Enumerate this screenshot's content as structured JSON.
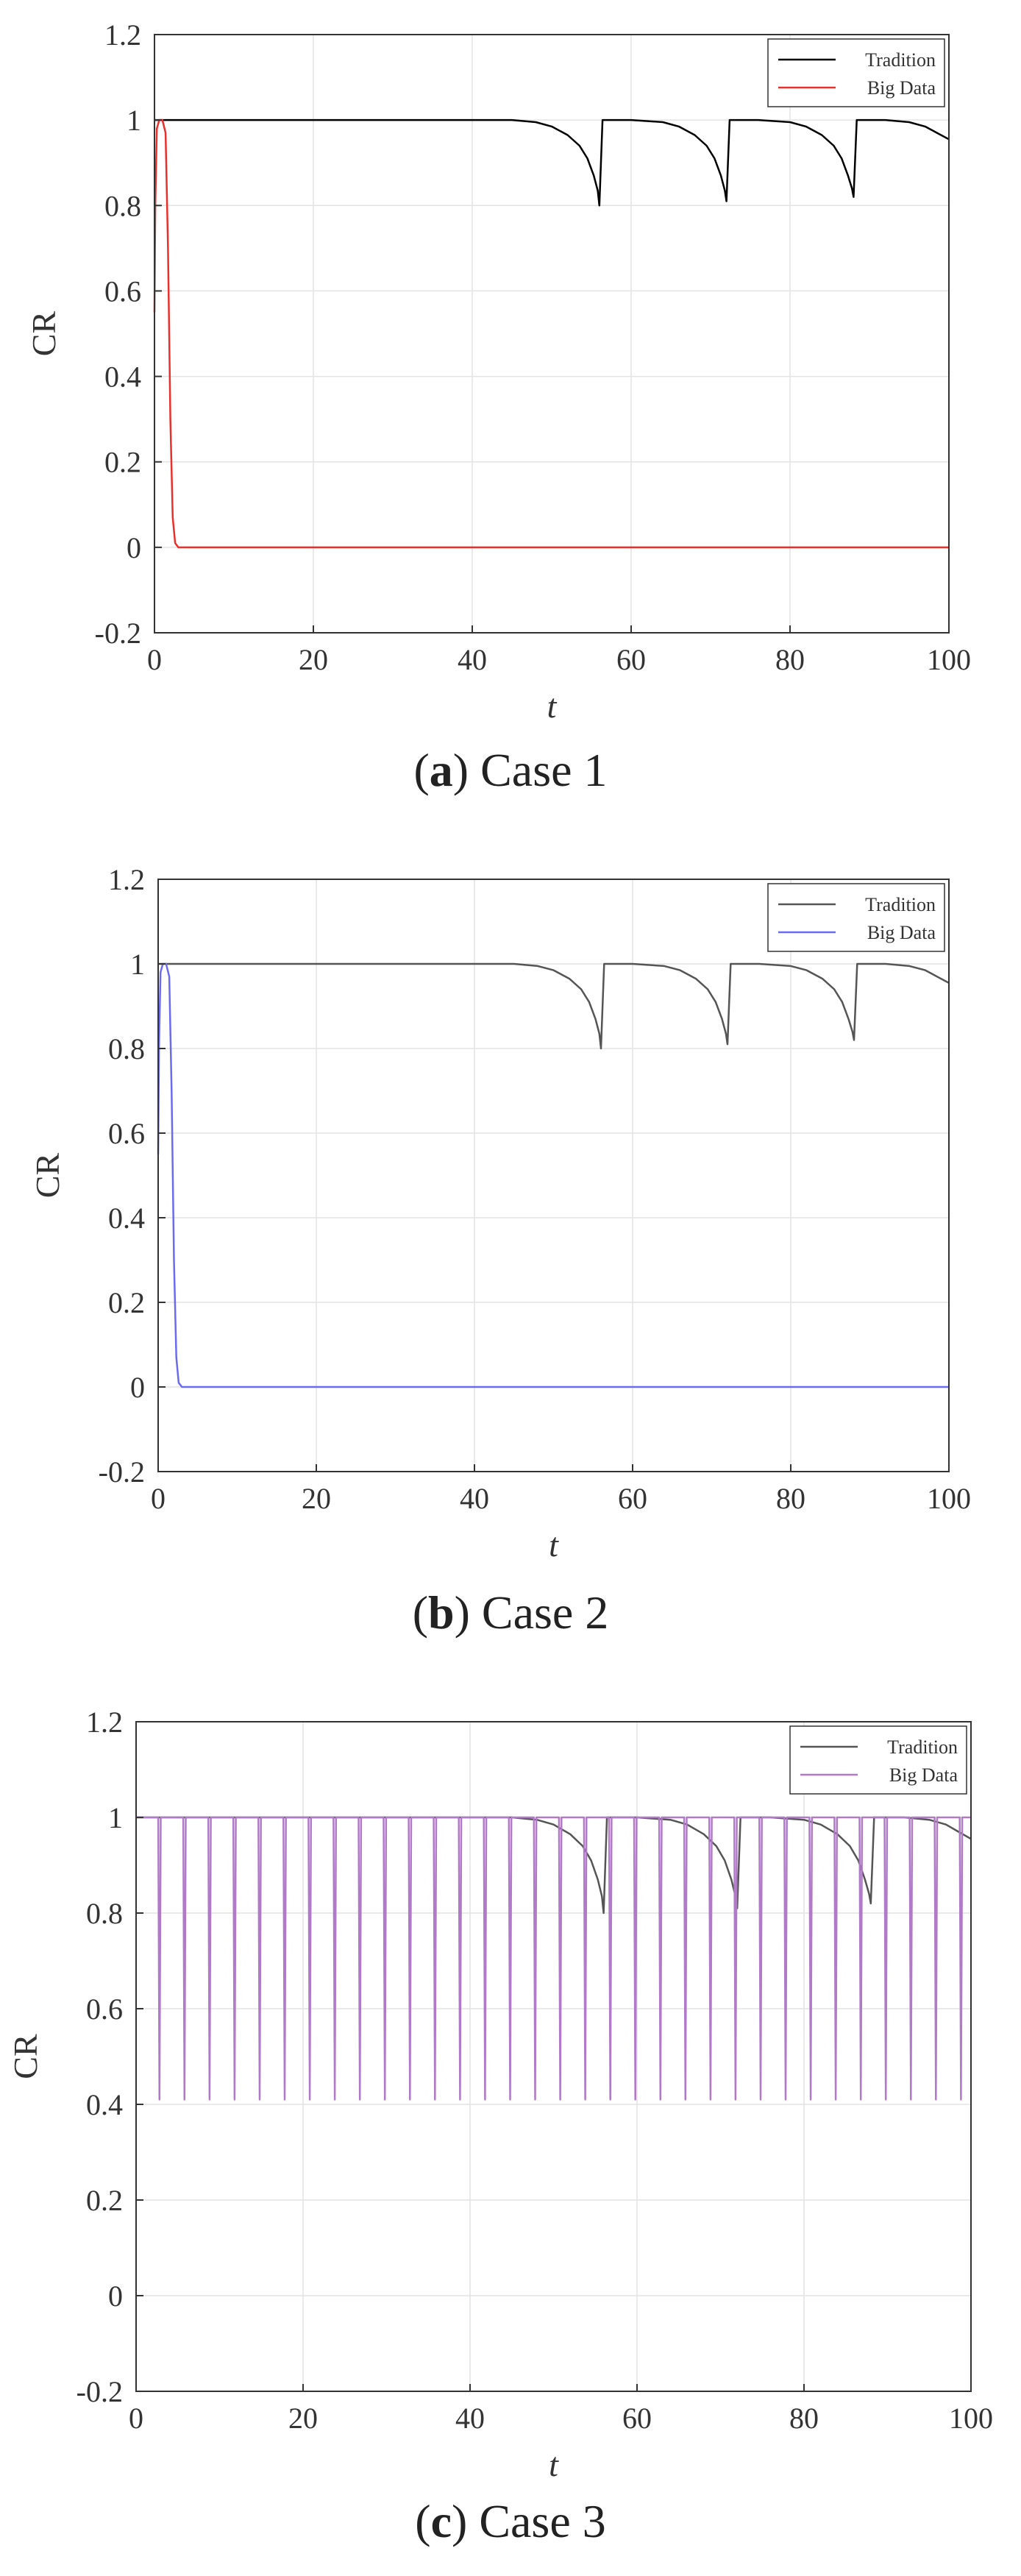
{
  "panels": [
    {
      "caption_letter": "a",
      "caption_text": "Case 1",
      "legend": [
        "Tradition",
        "Big Data"
      ]
    },
    {
      "caption_letter": "b",
      "caption_text": "Case 2",
      "legend": [
        "Tradition",
        "Big Data"
      ]
    },
    {
      "caption_letter": "c",
      "caption_text": "Case 3",
      "legend": [
        "Tradition",
        "Big Data"
      ]
    }
  ],
  "chart_data": [
    {
      "type": "line",
      "xlabel": "t",
      "ylabel": "CR",
      "xlim": [
        0,
        100
      ],
      "ylim": [
        -0.2,
        1.2
      ],
      "xticks": [
        0,
        20,
        40,
        60,
        80,
        100
      ],
      "yticks": [
        -0.2,
        0,
        0.2,
        0.4,
        0.6,
        0.8,
        1,
        1.2
      ],
      "grid": true,
      "legend_position": "top-right",
      "series": [
        {
          "name": "Tradition",
          "color": "#000000",
          "x": [
            0,
            45,
            48,
            50,
            52,
            53.5,
            54.5,
            55.3,
            55.8,
            56.0,
            56.4,
            60,
            64,
            66,
            68,
            69.5,
            70.5,
            71.3,
            71.8,
            72.0,
            72.4,
            76,
            80,
            82,
            84,
            85.5,
            86.5,
            87.3,
            87.8,
            88.0,
            88.4,
            92,
            95,
            97,
            98.5,
            100
          ],
          "values": [
            1,
            1,
            0.995,
            0.985,
            0.965,
            0.94,
            0.91,
            0.87,
            0.835,
            0.8,
            1,
            1,
            0.995,
            0.985,
            0.965,
            0.94,
            0.91,
            0.87,
            0.835,
            0.81,
            1,
            1,
            0.995,
            0.985,
            0.965,
            0.94,
            0.91,
            0.87,
            0.84,
            0.82,
            1,
            1,
            0.995,
            0.985,
            0.97,
            0.955
          ]
        },
        {
          "name": "Big Data",
          "color": "#e8302c",
          "x": [
            0,
            0.1,
            0.3,
            0.6,
            1.0,
            1.4,
            1.7,
            2.0,
            2.3,
            2.6,
            3.0,
            100
          ],
          "values": [
            0.55,
            0.8,
            0.98,
            1,
            1,
            0.97,
            0.7,
            0.3,
            0.07,
            0.01,
            0,
            0
          ]
        }
      ]
    },
    {
      "type": "line",
      "xlabel": "t",
      "ylabel": "CR",
      "xlim": [
        0,
        100
      ],
      "ylim": [
        -0.2,
        1.2
      ],
      "xticks": [
        0,
        20,
        40,
        60,
        80,
        100
      ],
      "yticks": [
        -0.2,
        0,
        0.2,
        0.4,
        0.6,
        0.8,
        1,
        1.2
      ],
      "grid": true,
      "legend_position": "top-right",
      "series": [
        {
          "name": "Tradition",
          "color": "#555555",
          "x": [
            0,
            45,
            48,
            50,
            52,
            53.5,
            54.5,
            55.3,
            55.8,
            56.0,
            56.4,
            60,
            64,
            66,
            68,
            69.5,
            70.5,
            71.3,
            71.8,
            72.0,
            72.4,
            76,
            80,
            82,
            84,
            85.5,
            86.5,
            87.3,
            87.8,
            88.0,
            88.4,
            92,
            95,
            97,
            98.5,
            100
          ],
          "values": [
            1,
            1,
            0.995,
            0.985,
            0.965,
            0.94,
            0.91,
            0.87,
            0.835,
            0.8,
            1,
            1,
            0.995,
            0.985,
            0.965,
            0.94,
            0.91,
            0.87,
            0.835,
            0.81,
            1,
            1,
            0.995,
            0.985,
            0.965,
            0.94,
            0.91,
            0.87,
            0.84,
            0.82,
            1,
            1,
            0.995,
            0.985,
            0.97,
            0.955
          ]
        },
        {
          "name": "Big Data",
          "color": "#6b6bf0",
          "x": [
            0,
            0.1,
            0.3,
            0.6,
            1.0,
            1.4,
            1.7,
            2.0,
            2.3,
            2.6,
            3.0,
            100
          ],
          "values": [
            0.55,
            0.8,
            0.98,
            1,
            1,
            0.97,
            0.7,
            0.3,
            0.07,
            0.01,
            0,
            0
          ]
        }
      ]
    },
    {
      "type": "line",
      "xlabel": "t",
      "ylabel": "CR",
      "xlim": [
        0,
        100
      ],
      "ylim": [
        -0.2,
        1.2
      ],
      "xticks": [
        0,
        20,
        40,
        60,
        80,
        100
      ],
      "yticks": [
        -0.2,
        0,
        0.2,
        0.4,
        0.6,
        0.8,
        1,
        1.2
      ],
      "grid": true,
      "legend_position": "top-right",
      "series": [
        {
          "name": "Tradition",
          "color": "#555555",
          "x": [
            0,
            45,
            48,
            50,
            52,
            53.5,
            54.5,
            55.3,
            55.8,
            56.0,
            56.4,
            60,
            64,
            66,
            68,
            69.5,
            70.5,
            71.3,
            71.8,
            72.0,
            72.4,
            76,
            80,
            82,
            84,
            85.5,
            86.5,
            87.3,
            87.8,
            88.0,
            88.4,
            92,
            95,
            97,
            98.5,
            100
          ],
          "values": [
            1,
            1,
            0.995,
            0.985,
            0.965,
            0.94,
            0.91,
            0.87,
            0.835,
            0.8,
            1,
            1,
            0.995,
            0.985,
            0.965,
            0.94,
            0.91,
            0.87,
            0.835,
            0.81,
            1,
            1,
            0.995,
            0.985,
            0.965,
            0.94,
            0.91,
            0.87,
            0.84,
            0.82,
            1,
            1,
            0.995,
            0.985,
            0.97,
            0.955
          ]
        },
        {
          "name": "Big Data",
          "color": "#b07ac8",
          "pulse_times": [
            2.8,
            5.8,
            8.8,
            11.8,
            14.8,
            17.8,
            20.8,
            23.8,
            26.8,
            29.8,
            32.8,
            35.8,
            38.8,
            41.8,
            44.8,
            47.8,
            50.8,
            53.8,
            56.8,
            59.8,
            62.8,
            65.8,
            68.8,
            71.8,
            74.8,
            77.8,
            80.8,
            83.8,
            86.8,
            89.8,
            92.8,
            95.8,
            98.8
          ],
          "pulse_min": 0.41,
          "baseline": 1
        }
      ]
    }
  ]
}
